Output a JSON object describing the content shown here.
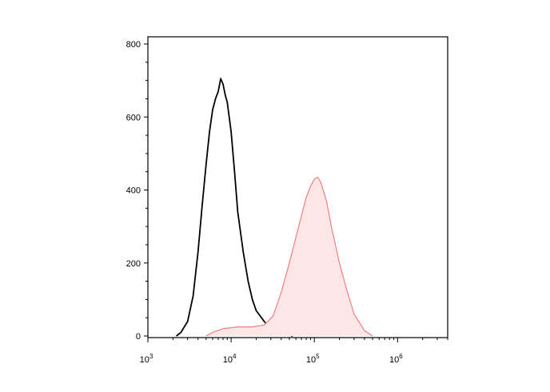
{
  "chart_data": {
    "type": "area",
    "x_scale": "log",
    "xlim": [
      1000,
      4000000
    ],
    "ylim": [
      0,
      800
    ],
    "y_ticks": [
      0,
      200,
      400,
      600,
      800
    ],
    "x_ticks": [
      {
        "value": 1000,
        "base": "10",
        "exp": "3"
      },
      {
        "value": 10000,
        "base": "10",
        "exp": "4"
      },
      {
        "value": 100000,
        "base": "10",
        "exp": "5"
      },
      {
        "value": 1000000,
        "base": "10",
        "exp": "6"
      }
    ],
    "grid": false,
    "series": [
      {
        "color": "#000000",
        "filled": false,
        "points": [
          [
            2200,
            0
          ],
          [
            2500,
            10
          ],
          [
            3000,
            40
          ],
          [
            3500,
            110
          ],
          [
            4000,
            230
          ],
          [
            4500,
            360
          ],
          [
            5000,
            470
          ],
          [
            5500,
            560
          ],
          [
            6000,
            620
          ],
          [
            6500,
            650
          ],
          [
            7000,
            670
          ],
          [
            7500,
            705
          ],
          [
            8000,
            690
          ],
          [
            8500,
            660
          ],
          [
            9000,
            640
          ],
          [
            10000,
            560
          ],
          [
            11000,
            450
          ],
          [
            12000,
            340
          ],
          [
            14000,
            230
          ],
          [
            16000,
            150
          ],
          [
            18000,
            100
          ],
          [
            20000,
            70
          ],
          [
            25000,
            40
          ],
          [
            30000,
            20
          ],
          [
            40000,
            8
          ],
          [
            55000,
            0
          ]
        ]
      },
      {
        "color": "#f08080",
        "fill": "#fde6e6",
        "filled": true,
        "points": [
          [
            5000,
            0
          ],
          [
            6000,
            10
          ],
          [
            8000,
            20
          ],
          [
            12000,
            25
          ],
          [
            18000,
            25
          ],
          [
            25000,
            30
          ],
          [
            32000,
            55
          ],
          [
            40000,
            120
          ],
          [
            50000,
            200
          ],
          [
            60000,
            270
          ],
          [
            70000,
            330
          ],
          [
            80000,
            380
          ],
          [
            90000,
            410
          ],
          [
            100000,
            430
          ],
          [
            110000,
            435
          ],
          [
            120000,
            420
          ],
          [
            140000,
            370
          ],
          [
            160000,
            300
          ],
          [
            200000,
            200
          ],
          [
            250000,
            120
          ],
          [
            300000,
            60
          ],
          [
            400000,
            15
          ],
          [
            500000,
            0
          ]
        ]
      }
    ]
  }
}
